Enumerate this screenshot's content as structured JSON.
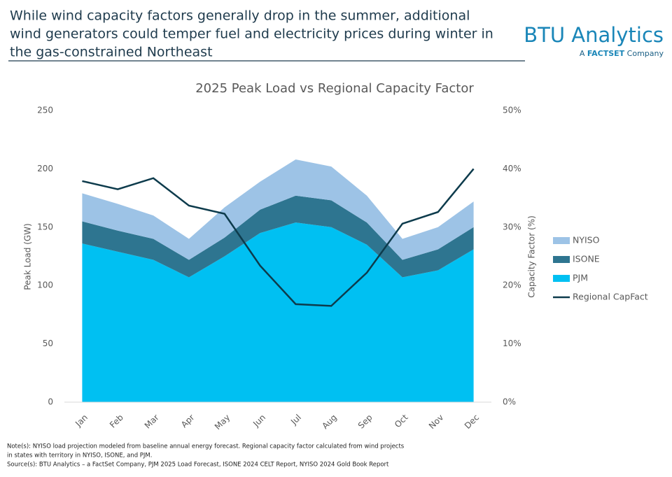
{
  "header": {
    "title_lines": [
      "While wind capacity factors generally drop in the summer, additional",
      "wind generators could temper fuel and electricity prices during winter in",
      "the gas-constrained Northeast"
    ],
    "logo": {
      "name": "BTU Analytics",
      "prefix": "A",
      "brand": "FACTSET",
      "suffix": "Company"
    }
  },
  "notes": [
    "Note(s): NYISO load projection modeled from baseline annual energy forecast. Regional capacity factor calculated from wind projects",
    "in states with territory in NYISO, ISONE, and PJM.",
    "Source(s): BTU Analytics – a FactSet Company, PJM 2025 Load Forecast, ISONE 2024 CELT Report, NYISO 2024 Gold Book Report"
  ],
  "chart_data": {
    "type": "area",
    "stacked": true,
    "title": "2025 Peak Load vs Regional Capacity Factor",
    "y_label": "Peak Load (GW)",
    "y2_label": "Capacity Factor (%)",
    "categories": [
      "Jan",
      "Feb",
      "Mar",
      "Apr",
      "May",
      "Jun",
      "Jul",
      "Aug",
      "Sep",
      "Oct",
      "Nov",
      "Dec"
    ],
    "series": [
      {
        "name": "NYISO",
        "color": "#9dc3e6",
        "values": [
          24,
          23,
          20,
          18,
          26,
          24,
          31,
          29,
          23,
          18,
          19,
          22
        ]
      },
      {
        "name": "ISONE",
        "color": "#2e7590",
        "values": [
          19,
          18,
          18,
          15,
          16,
          20,
          23,
          23,
          19,
          15,
          18,
          19
        ]
      },
      {
        "name": "PJM",
        "color": "#00c0f2",
        "values": [
          136,
          129,
          122,
          107,
          125,
          145,
          154,
          150,
          135,
          107,
          113,
          131
        ]
      },
      {
        "name": "Regional CapFact",
        "color": "#0d3b4c",
        "type": "line",
        "axis": "y2",
        "values": [
          37.9,
          36.5,
          38.4,
          33.7,
          32.3,
          23.4,
          16.8,
          16.5,
          22.2,
          30.6,
          32.6,
          40.0
        ]
      }
    ],
    "ylim": [
      0,
      250
    ],
    "yticks": [
      0,
      50,
      100,
      150,
      200,
      250
    ],
    "y2lim": [
      0,
      50
    ],
    "y2ticks": [
      {
        "value": 0,
        "label": "0%"
      },
      {
        "value": 10,
        "label": "10%"
      },
      {
        "value": 20,
        "label": "20%"
      },
      {
        "value": 30,
        "label": "30%"
      },
      {
        "value": 40,
        "label": "40%"
      },
      {
        "value": 50,
        "label": "50%"
      }
    ],
    "legend": "right",
    "grid": false
  }
}
